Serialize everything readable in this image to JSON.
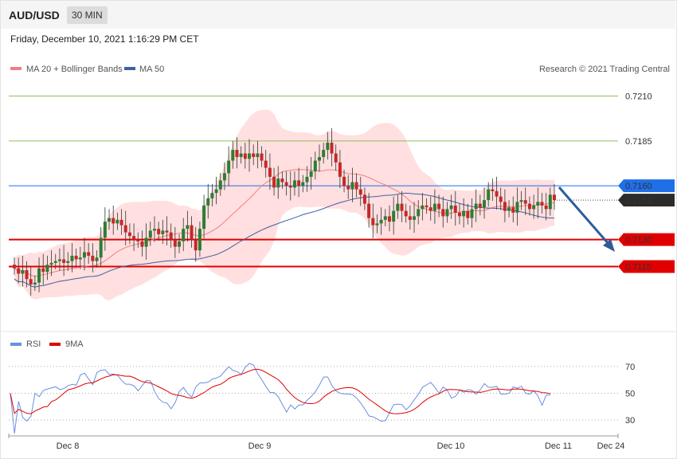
{
  "header": {
    "symbol": "AUD/USD",
    "timeframe": "30 MIN",
    "datetime": "Friday, December 10, 2021 1:16:29 PM CET"
  },
  "legend": {
    "ma20": "MA 20 + Bollinger Bands",
    "ma50": "MA 50",
    "rsi": "RSI",
    "ma9": "9MA",
    "credit": "Research © 2021 Trading Central"
  },
  "colors": {
    "up": "#2e7d32",
    "down": "#c62828",
    "band": "#ffd9d9",
    "ma20": "#f08080",
    "ma50": "#3f5f9f",
    "resist": "#8fc05a",
    "pivot": "#1e6fe8",
    "support": "#e00000",
    "current": "#2b2b2b",
    "rsi": "#6b8ee0",
    "rsi_ma": "#e00000",
    "arrow": "#2e5c9a"
  },
  "chart_data": {
    "type": "candlestick",
    "ylim": [
      0.7085,
      0.722
    ],
    "levels": [
      {
        "value": 0.721,
        "label": "0.7210",
        "kind": "resistance"
      },
      {
        "value": 0.7185,
        "label": "0.7185",
        "kind": "resistance"
      },
      {
        "value": 0.716,
        "label": "0.7160",
        "kind": "pivot"
      },
      {
        "value": 0.7152,
        "label": "0.7152",
        "kind": "current"
      },
      {
        "value": 0.713,
        "label": "0.7130",
        "kind": "support"
      },
      {
        "value": 0.7115,
        "label": "0.7115",
        "kind": "support"
      }
    ],
    "x_ticks": [
      "Dec 8",
      "Dec 9",
      "Dec 10",
      "Dec 11",
      "Dec 24"
    ],
    "closes": [
      0.7114,
      0.7111,
      0.7113,
      0.7108,
      0.7105,
      0.7106,
      0.7114,
      0.7112,
      0.7116,
      0.7117,
      0.7118,
      0.7119,
      0.7117,
      0.7118,
      0.7121,
      0.7119,
      0.712,
      0.7123,
      0.7121,
      0.7118,
      0.712,
      0.7131,
      0.714,
      0.7142,
      0.7139,
      0.7141,
      0.7138,
      0.7134,
      0.7132,
      0.713,
      0.7129,
      0.7126,
      0.7131,
      0.7135,
      0.7136,
      0.7133,
      0.7135,
      0.7134,
      0.713,
      0.7126,
      0.7129,
      0.7136,
      0.7138,
      0.713,
      0.7124,
      0.7136,
      0.7149,
      0.7153,
      0.7156,
      0.7158,
      0.7163,
      0.7167,
      0.7174,
      0.718,
      0.7176,
      0.7178,
      0.7175,
      0.7178,
      0.7176,
      0.7178,
      0.7174,
      0.717,
      0.7165,
      0.7159,
      0.7164,
      0.7162,
      0.716,
      0.7159,
      0.7163,
      0.716,
      0.7162,
      0.7165,
      0.7168,
      0.7174,
      0.7176,
      0.718,
      0.7184,
      0.7178,
      0.7173,
      0.7165,
      0.716,
      0.7158,
      0.7162,
      0.7158,
      0.7155,
      0.715,
      0.7142,
      0.7138,
      0.7139,
      0.7141,
      0.7143,
      0.714,
      0.7146,
      0.715,
      0.7146,
      0.7143,
      0.7141,
      0.7143,
      0.7147,
      0.7149,
      0.7148,
      0.7146,
      0.715,
      0.7147,
      0.7143,
      0.7147,
      0.7149,
      0.7145,
      0.7143,
      0.7146,
      0.7142,
      0.7147,
      0.715,
      0.7148,
      0.7152,
      0.7158,
      0.7157,
      0.7154,
      0.7151,
      0.7146,
      0.7148,
      0.7145,
      0.7151,
      0.7152,
      0.715,
      0.7147,
      0.7149,
      0.7151,
      0.7149,
      0.7147,
      0.7155,
      0.7152
    ],
    "rsi": {
      "ylim": [
        20,
        80
      ],
      "levels": [
        70,
        50,
        30
      ]
    }
  }
}
